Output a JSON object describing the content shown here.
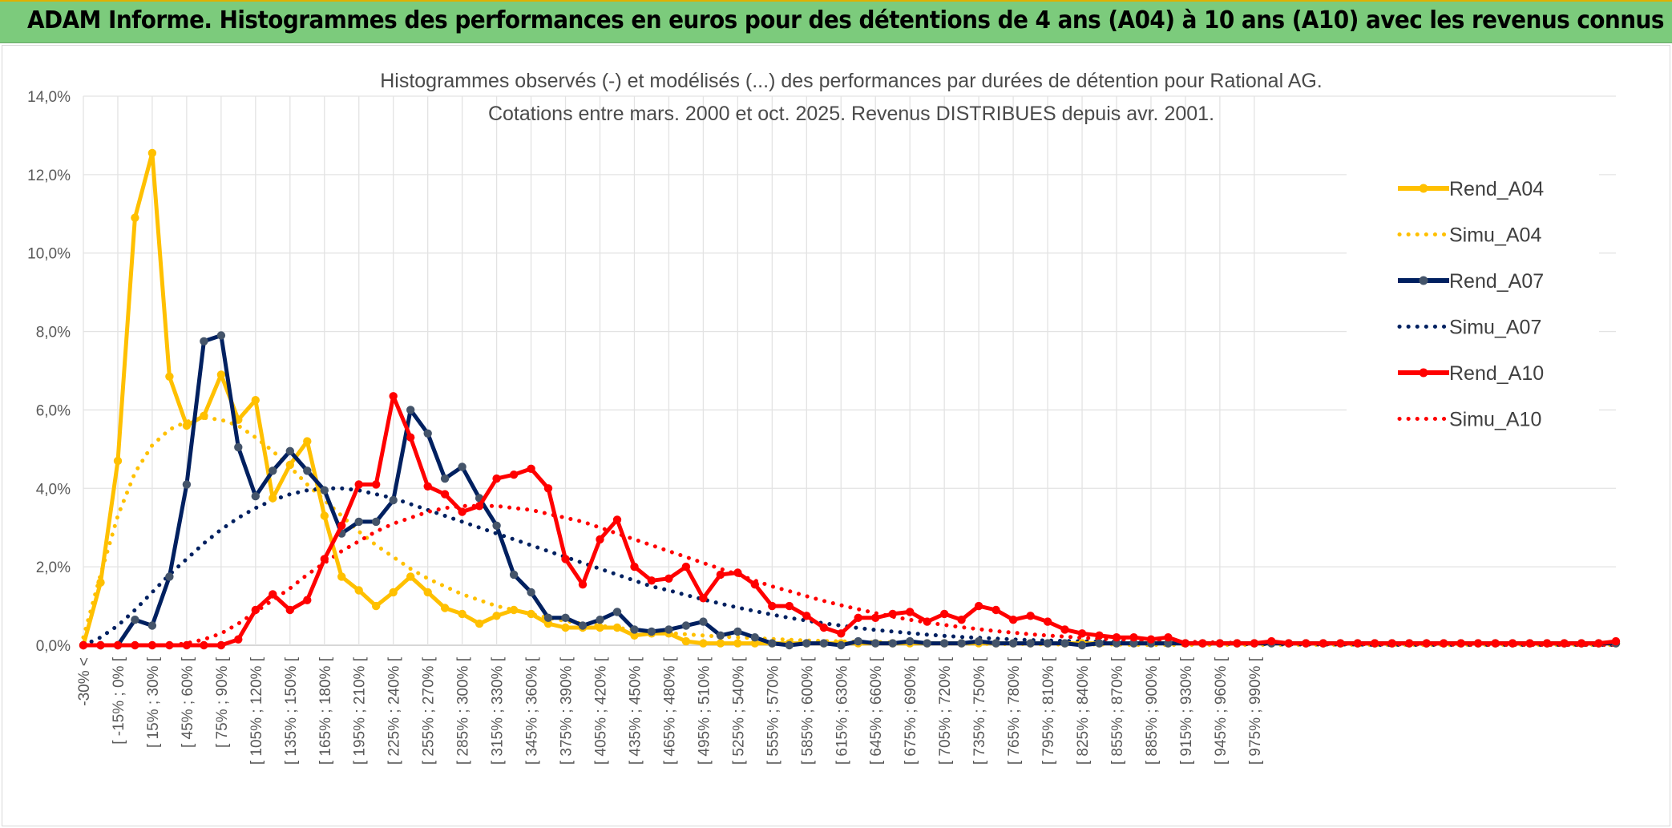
{
  "banner": {
    "title": "ADAM Informe. Histogrammes des performances en euros pour des détentions de 4 ans (A04) à 10 ans (A10) avec les revenus connus distribués"
  },
  "chart_data": {
    "type": "line",
    "title_lines": [
      "Histogrammes observés (-) et modélisés (...) des performances par durées de détention pour Rational AG.",
      "Cotations entre mars. 2000 et oct. 2025. Revenus DISTRIBUES depuis avr. 2001."
    ],
    "xlabel": "",
    "ylabel": "",
    "ylim": [
      0,
      14
    ],
    "y_ticks": [
      "0,0%",
      "2,0%",
      "4,0%",
      "6,0%",
      "8,0%",
      "10,0%",
      "12,0%",
      "14,0%"
    ],
    "x_tick_labels": [
      "-30% <",
      "[ -15% ; 0% [",
      "[ 15% ; 30% [",
      "[ 45% ; 60% [",
      "[ 75% ; 90% [",
      "[ 105% ; 120% [",
      "[ 135% ; 150% [",
      "[ 165% ; 180% [",
      "[ 195% ; 210% [",
      "[ 225% ; 240% [",
      "[ 255% ; 270% [",
      "[ 285% ; 300% [",
      "[ 315% ; 330% [",
      "[ 345% ; 360% [",
      "[ 375% ; 390% [",
      "[ 405% ; 420% [",
      "[ 435% ; 450% [",
      "[ 465% ; 480% [",
      "[ 495% ; 510% [",
      "[ 525% ; 540% [",
      "[ 555% ; 570% [",
      "[ 585% ; 600% [",
      "[ 615% ; 630% [",
      "[ 645% ; 660% [",
      "[ 675% ; 690% [",
      "[ 705% ; 720% [",
      "[ 735% ; 750% [",
      "[ 765% ; 780% [",
      "[ 795% ; 810% [",
      "[ 825% ; 840% [",
      "[ 855% ; 870% [",
      "[ 885% ; 900% [",
      "[ 915% ; 930% [",
      "[ 945% ; 960% [",
      "[ 975% ; 990% ["
    ],
    "grid": true,
    "legend_position": "right",
    "colors": {
      "A04": "#ffc000",
      "A07": "#002060",
      "A10": "#ff0000",
      "marker_A04": "#ffc000",
      "marker_A07": "#44546a",
      "marker_A10": "#ff0000"
    },
    "series": [
      {
        "name": "Rend_A04",
        "style": "solid",
        "color": "#ffc000",
        "values": [
          0,
          1.6,
          4.7,
          10.9,
          12.55,
          6.85,
          5.6,
          5.85,
          6.9,
          5.75,
          6.25,
          3.75,
          4.6,
          5.2,
          3.3,
          1.75,
          1.4,
          1.0,
          1.35,
          1.75,
          1.35,
          0.95,
          0.8,
          0.55,
          0.75,
          0.9,
          0.8,
          0.55,
          0.45,
          0.45,
          0.45,
          0.45,
          0.25,
          0.3,
          0.3,
          0.1,
          0.05,
          0.05,
          0.05,
          0.05,
          0.05,
          0.05,
          0.05,
          0.05,
          0.05,
          0.05,
          0.05,
          0.05,
          0.05,
          0.05,
          0.05,
          0.05,
          0.05,
          0.05,
          0.05,
          0.05,
          0.05,
          0.05,
          0.05,
          0.05,
          0.05,
          0.05,
          0.05,
          0.05,
          0.05,
          0.05,
          0.05,
          0.05,
          0.05,
          0.05,
          0.05,
          0.05,
          0.05,
          0.05,
          0.05,
          0.05,
          0.05,
          0.05,
          0.05,
          0.05,
          0.05,
          0.05,
          0.05,
          0.05,
          0.05,
          0.05,
          0.05,
          0.05,
          0.05,
          0.05
        ]
      },
      {
        "name": "Simu_A04",
        "style": "dotted",
        "color": "#ffc000",
        "values": [
          0.2,
          1.8,
          3.3,
          4.4,
          5.1,
          5.5,
          5.7,
          5.8,
          5.75,
          5.6,
          5.3,
          4.95,
          4.55,
          4.1,
          3.7,
          3.3,
          2.9,
          2.55,
          2.25,
          1.95,
          1.7,
          1.5,
          1.3,
          1.15,
          1.0,
          0.9,
          0.8,
          0.7,
          0.62,
          0.55,
          0.5,
          0.44,
          0.4,
          0.35,
          0.31,
          0.28,
          0.25,
          0.22,
          0.2,
          0.18,
          0.16,
          0.14,
          0.12,
          0.11,
          0.1,
          0.09,
          0.08,
          0.07,
          0.06,
          0.05,
          0.05,
          0.04,
          0.04,
          0.03,
          0.03,
          0.03,
          0.02,
          0.02,
          0.02,
          0.02,
          0.02,
          0.01,
          0.01,
          0.01,
          0.01,
          0.01,
          0.01,
          0.01,
          0.01,
          0.01,
          0.01,
          0.01,
          0.01,
          0.01,
          0.01,
          0.01,
          0.01,
          0.01,
          0.01,
          0.01,
          0.01,
          0.01,
          0.01,
          0.01,
          0.01,
          0.01,
          0.01,
          0.01,
          0.01,
          0.01
        ]
      },
      {
        "name": "Rend_A07",
        "style": "solid",
        "color": "#002060",
        "values": [
          0,
          0,
          0,
          0.65,
          0.5,
          1.75,
          4.1,
          7.75,
          7.9,
          5.05,
          3.8,
          4.45,
          4.95,
          4.45,
          3.95,
          2.85,
          3.15,
          3.15,
          3.7,
          6.0,
          5.4,
          4.25,
          4.55,
          3.75,
          3.05,
          1.8,
          1.35,
          0.7,
          0.7,
          0.5,
          0.65,
          0.85,
          0.4,
          0.35,
          0.4,
          0.5,
          0.6,
          0.25,
          0.35,
          0.2,
          0.05,
          0.0,
          0.05,
          0.05,
          0.0,
          0.1,
          0.05,
          0.05,
          0.1,
          0.05,
          0.05,
          0.05,
          0.1,
          0.05,
          0.05,
          0.05,
          0.05,
          0.05,
          0.0,
          0.05,
          0.05,
          0.05,
          0.05,
          0.05,
          0.05,
          0.05,
          0.05,
          0.05,
          0.05,
          0.05,
          0.05,
          0.05,
          0.05,
          0.05,
          0.05,
          0.05,
          0.05,
          0.05,
          0.05,
          0.05,
          0.05,
          0.05,
          0.05,
          0.05,
          0.05,
          0.05,
          0.05,
          0.05,
          0.05,
          0.05
        ]
      },
      {
        "name": "Simu_A07",
        "style": "dotted",
        "color": "#002060",
        "values": [
          0.0,
          0.2,
          0.5,
          0.9,
          1.35,
          1.8,
          2.2,
          2.6,
          2.95,
          3.25,
          3.5,
          3.7,
          3.85,
          3.95,
          4.0,
          4.0,
          3.95,
          3.85,
          3.75,
          3.6,
          3.45,
          3.3,
          3.15,
          3.0,
          2.85,
          2.7,
          2.55,
          2.4,
          2.25,
          2.1,
          1.95,
          1.8,
          1.65,
          1.5,
          1.4,
          1.28,
          1.17,
          1.06,
          0.96,
          0.87,
          0.78,
          0.7,
          0.63,
          0.56,
          0.5,
          0.44,
          0.39,
          0.35,
          0.31,
          0.27,
          0.24,
          0.21,
          0.19,
          0.17,
          0.15,
          0.13,
          0.12,
          0.11,
          0.1,
          0.09,
          0.08,
          0.07,
          0.06,
          0.05,
          0.05,
          0.04,
          0.04,
          0.03,
          0.03,
          0.03,
          0.02,
          0.02,
          0.02,
          0.02,
          0.02,
          0.01,
          0.01,
          0.01,
          0.01,
          0.01,
          0.01,
          0.01,
          0.01,
          0.01,
          0.01,
          0.01,
          0.01,
          0.01,
          0.01,
          0.01
        ]
      },
      {
        "name": "Rend_A10",
        "style": "solid",
        "color": "#ff0000",
        "values": [
          0,
          0,
          0,
          0,
          0,
          0,
          0,
          0,
          0,
          0.15,
          0.9,
          1.3,
          0.9,
          1.15,
          2.2,
          3.05,
          4.1,
          4.1,
          6.35,
          5.3,
          4.05,
          3.85,
          3.4,
          3.55,
          4.25,
          4.35,
          4.5,
          4.0,
          2.2,
          1.55,
          2.7,
          3.2,
          2.0,
          1.65,
          1.7,
          2.0,
          1.2,
          1.8,
          1.85,
          1.55,
          1.0,
          1.0,
          0.75,
          0.45,
          0.3,
          0.7,
          0.7,
          0.8,
          0.85,
          0.6,
          0.8,
          0.65,
          1.0,
          0.9,
          0.65,
          0.75,
          0.6,
          0.4,
          0.3,
          0.25,
          0.2,
          0.2,
          0.15,
          0.2,
          0.05,
          0.05,
          0.05,
          0.05,
          0.05,
          0.1,
          0.05,
          0.05,
          0.05,
          0.05,
          0.05,
          0.05,
          0.05,
          0.05,
          0.05,
          0.05,
          0.05,
          0.05,
          0.05,
          0.05,
          0.05,
          0.05,
          0.05,
          0.05,
          0.05,
          0.1
        ]
      },
      {
        "name": "Simu_A10",
        "style": "dotted",
        "color": "#ff0000",
        "values": [
          0,
          0,
          0,
          0,
          0,
          0,
          0.05,
          0.15,
          0.3,
          0.55,
          0.85,
          1.15,
          1.45,
          1.8,
          2.1,
          2.4,
          2.65,
          2.9,
          3.1,
          3.25,
          3.4,
          3.5,
          3.55,
          3.55,
          3.55,
          3.5,
          3.45,
          3.35,
          3.25,
          3.15,
          3.0,
          2.85,
          2.7,
          2.55,
          2.4,
          2.25,
          2.1,
          1.95,
          1.8,
          1.65,
          1.5,
          1.38,
          1.25,
          1.13,
          1.02,
          0.92,
          0.82,
          0.73,
          0.65,
          0.58,
          0.52,
          0.46,
          0.41,
          0.36,
          0.32,
          0.28,
          0.25,
          0.22,
          0.19,
          0.17,
          0.15,
          0.13,
          0.12,
          0.1,
          0.09,
          0.08,
          0.07,
          0.06,
          0.05,
          0.05,
          0.04,
          0.04,
          0.03,
          0.03,
          0.03,
          0.02,
          0.02,
          0.02,
          0.02,
          0.02,
          0.01,
          0.01,
          0.01,
          0.01,
          0.01,
          0.01,
          0.01,
          0.01,
          0.01,
          0.01
        ]
      }
    ]
  }
}
